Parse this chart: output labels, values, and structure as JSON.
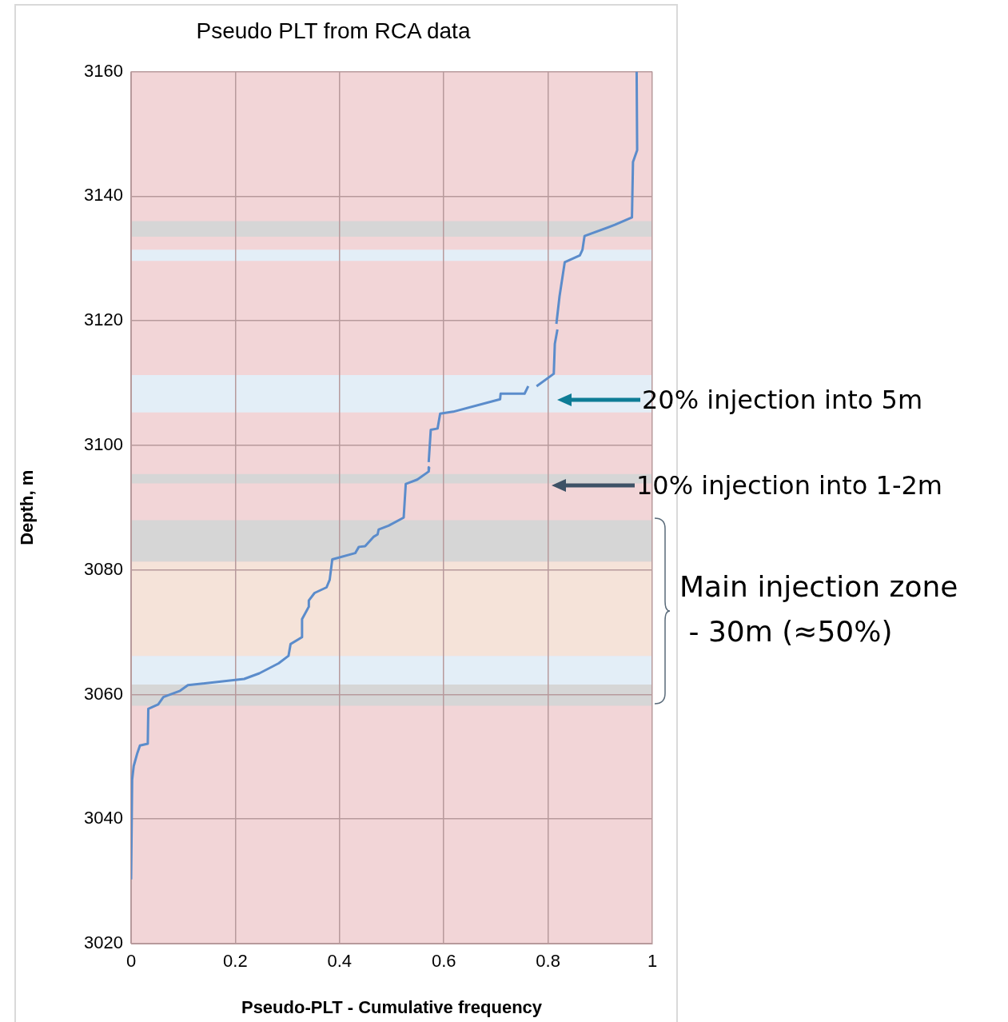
{
  "chart_data": {
    "type": "line",
    "title": "Pseudo PLT from RCA data",
    "xlabel": "Pseudo-PLT - Cumulative frequency",
    "ylabel": "Depth, m",
    "xlim": [
      0,
      1
    ],
    "xticks": [
      0,
      {
        "value": 0.2,
        "label": "0.2"
      },
      {
        "value": 0.4,
        "label": "0.4"
      },
      {
        "value": 0.6,
        "label": "0.6"
      },
      {
        "value": 0.8,
        "label": "0.8"
      },
      1
    ],
    "ylim": [
      3020,
      3160
    ],
    "yticks": [
      3020,
      3040,
      3060,
      3080,
      3100,
      3120,
      3140,
      3160
    ],
    "grid": true,
    "legend": false,
    "marker": "none",
    "line_style": "solid",
    "series": [
      {
        "color": "#5b8ccb",
        "x": [
          0.97,
          0.971,
          0.963,
          0.961,
          0.928,
          0.87,
          0.866,
          0.861,
          0.832,
          0.822,
          0.816,
          null,
          0.818,
          0.813,
          0.811,
          0.778,
          null,
          0.762,
          0.755,
          0.709,
          0.708,
          0.618,
          0.593,
          0.588,
          0.575,
          0.571,
          null,
          0.572,
          0.571,
          0.549,
          0.527,
          0.523,
          0.494,
          0.475,
          0.473,
          0.465,
          0.449,
          0.437,
          0.43,
          0.386,
          0.381,
          0.375,
          0.352,
          0.341,
          0.341,
          0.328,
          0.328,
          0.306,
          0.302,
          0.283,
          0.246,
          0.217,
          0.109,
          0.094,
          0.062,
          0.052,
          0.033,
          0.032,
          0.017,
          0.012,
          0.005,
          0.002,
          0
        ],
        "values": [
          3160,
          3147.4,
          3145.5,
          3136.6,
          3135.4,
          3133.6,
          3131.4,
          3130.5,
          3129.4,
          3123.9,
          3119.5,
          null,
          3118.6,
          3116.3,
          3111.5,
          3109.5,
          null,
          3109.5,
          3108.3,
          3108.3,
          3107.4,
          3105.4,
          3105.1,
          3102.7,
          3102.5,
          3097.3,
          null,
          3096.5,
          3095.8,
          3094.5,
          3093.8,
          3088.4,
          3087.1,
          3086.5,
          3085.7,
          3085.3,
          3083.8,
          3083.7,
          3082.7,
          3081.7,
          3078.4,
          3077.2,
          3076.3,
          3075.1,
          3074.1,
          3072.1,
          3069.2,
          3068.1,
          3066.2,
          3065.0,
          3063.4,
          3062.5,
          3061.5,
          3060.6,
          3059.6,
          3058.4,
          3057.7,
          3052.1,
          3051.8,
          3050.6,
          3048.5,
          3046.3,
          3030.3
        ]
      }
    ],
    "bands": [
      {
        "axis": "y",
        "from": 3020,
        "to": 3160,
        "color": "#f2d5d7"
      },
      {
        "axis": "y",
        "from": 3133.5,
        "to": 3136.0,
        "color": "#d6d6d6"
      },
      {
        "axis": "y",
        "from": 3129.6,
        "to": 3131.4,
        "color": "#e3eef7"
      },
      {
        "axis": "y",
        "from": 3105.3,
        "to": 3111.3,
        "color": "#e3eef7"
      },
      {
        "axis": "y",
        "from": 3093.9,
        "to": 3095.4,
        "color": "#d6d6d6"
      },
      {
        "axis": "y",
        "from": 3081.3,
        "to": 3088.0,
        "color": "#d6d6d6"
      },
      {
        "axis": "y",
        "from": 3066.2,
        "to": 3081.3,
        "color": "#f5e3d9"
      },
      {
        "axis": "y",
        "from": 3061.6,
        "to": 3066.2,
        "color": "#e3eef7"
      },
      {
        "axis": "y",
        "from": 3058.2,
        "to": 3061.6,
        "color": "#d6d6d6"
      }
    ],
    "annotations": [
      "20% injection into 5m",
      "10% injection into 1-2m",
      "Main injection zone\n - 30m (≈50%)"
    ]
  }
}
